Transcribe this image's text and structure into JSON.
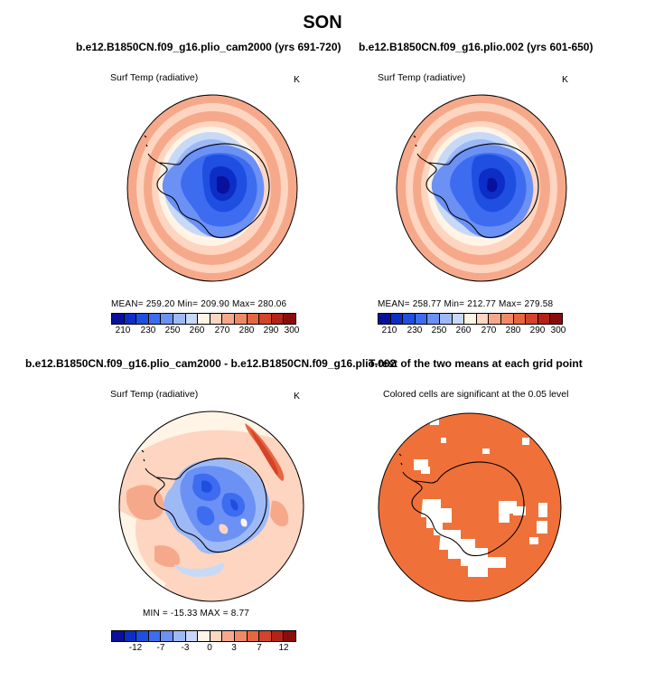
{
  "figure_title": "SON",
  "panels": {
    "top_left": {
      "title": "b.e12.B1850CN.f09_g16.plio_cam2000 (yrs 691-720)",
      "variable": "Surf Temp (radiative)",
      "units": "K",
      "stats": "MEAN= 259.20   Min= 209.90   Max= 280.06"
    },
    "top_right": {
      "title": "b.e12.B1850CN.f09_g16.plio.002 (yrs 601-650)",
      "variable": "Surf Temp (radiative)",
      "units": "K",
      "stats": "MEAN= 258.77   Min= 212.77   Max= 279.58"
    },
    "bottom_left": {
      "title": "b.e12.B1850CN.f09_g16.plio_cam2000 - b.e12.B1850CN.f09_g16.plio.002",
      "variable": "Surf Temp (radiative)",
      "units": "K",
      "stats": "MIN = -15.33  MAX =    8.77"
    },
    "bottom_right": {
      "title": "T-test of the two means at each grid point",
      "subtitle": "Colored cells are significant at the 0.05 level"
    }
  },
  "colorbar_abs": {
    "labels": [
      "210",
      "230",
      "250",
      "260",
      "270",
      "280",
      "290",
      "300"
    ],
    "colors": [
      "#08109c",
      "#0c2ec6",
      "#1e4fe0",
      "#3d6cf0",
      "#6b91f5",
      "#9dbaf7",
      "#c8d9f7",
      "#fff4e6",
      "#fdd5c0",
      "#f6a98a",
      "#f08a66",
      "#e8663f",
      "#d4432a",
      "#b52217",
      "#8a0c0c"
    ]
  },
  "colorbar_diff": {
    "labels": [
      "-12",
      "-7",
      "-3",
      "0",
      "3",
      "7",
      "12"
    ],
    "colors": [
      "#08109c",
      "#0c2ec6",
      "#1e4fe0",
      "#3d6cf0",
      "#6b91f5",
      "#9dbaf7",
      "#c8d9f7",
      "#fff4e6",
      "#fdd5c0",
      "#f6a98a",
      "#f08a66",
      "#e8663f",
      "#d4432a",
      "#b52217",
      "#8a0c0c"
    ]
  },
  "significance_color": "#ef7139"
}
